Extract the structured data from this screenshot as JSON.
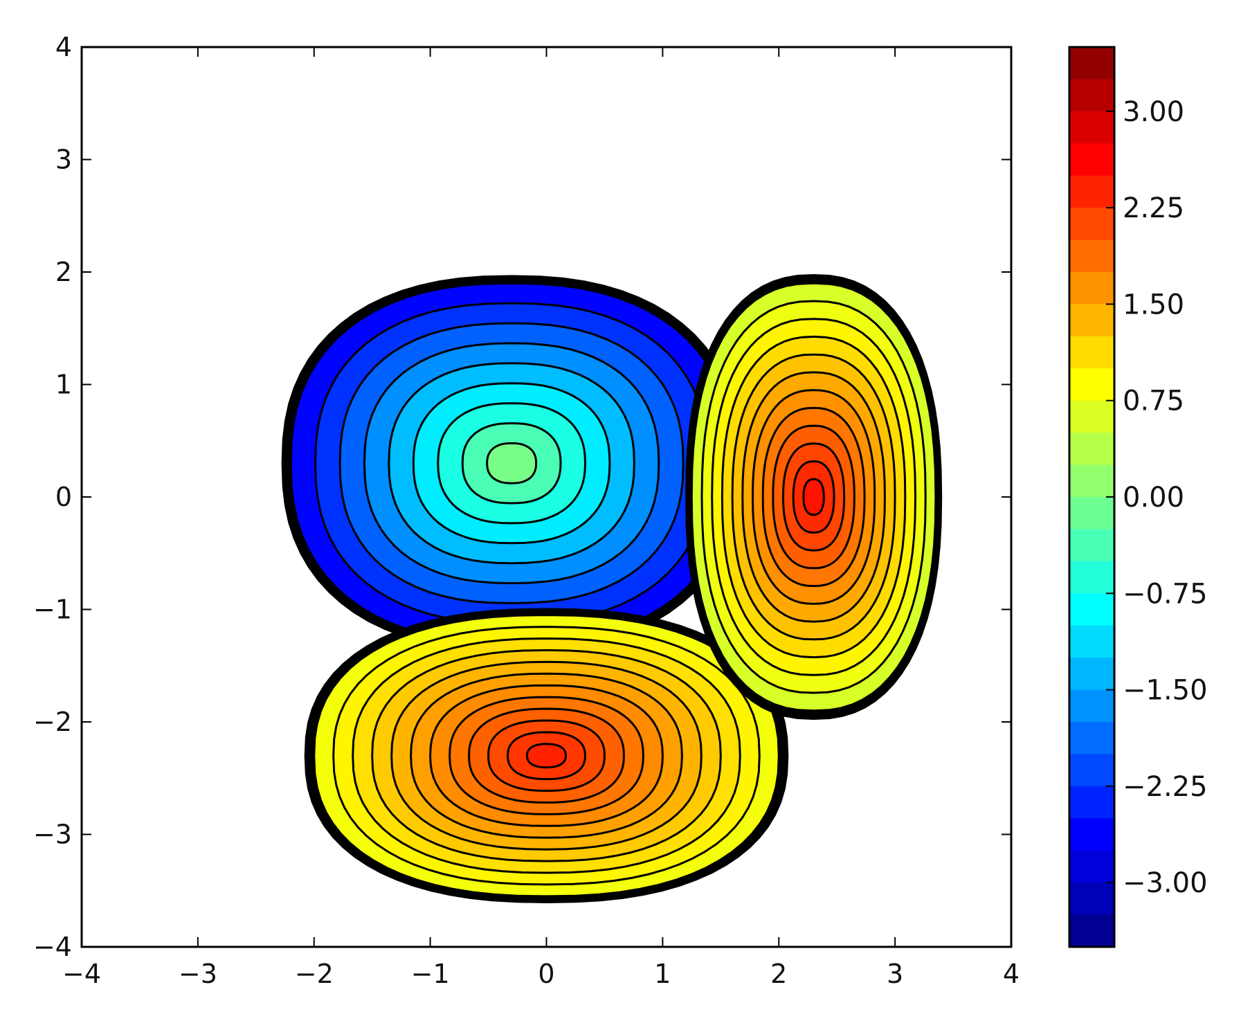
{
  "chart_data": {
    "type": "contour",
    "title": "",
    "xlabel": "",
    "ylabel": "",
    "xlim": [
      -4,
      4
    ],
    "ylim": [
      -4,
      4
    ],
    "x_ticks": [
      -4,
      -3,
      -2,
      -1,
      0,
      1,
      2,
      3,
      4
    ],
    "x_tick_labels": [
      "−4",
      "−3",
      "−2",
      "−1",
      "0",
      "1",
      "2",
      "3",
      "4"
    ],
    "y_ticks": [
      -4,
      -3,
      -2,
      -1,
      0,
      1,
      2,
      3,
      4
    ],
    "y_tick_labels": [
      "−4",
      "−3",
      "−2",
      "−1",
      "0",
      "1",
      "2",
      "3",
      "4"
    ],
    "colormap": "jet",
    "colorbar": {
      "range": [
        -3.5,
        3.5
      ],
      "ticks": [
        3.0,
        2.25,
        1.5,
        0.75,
        0.0,
        -0.75,
        -1.5,
        -2.25,
        -3.0
      ],
      "tick_labels": [
        "3.00",
        "2.25",
        "1.50",
        "0.75",
        "0.00",
        "−0.75",
        "−1.50",
        "−2.25",
        "−3.00"
      ],
      "placement": "right"
    },
    "regions": [
      {
        "name": "",
        "center": [
          -0.3,
          0.3
        ],
        "radius": [
          1.9,
          1.6
        ],
        "peak": -0.05,
        "edge": -2.6,
        "levels": 9
      },
      {
        "name": "",
        "center": [
          0.0,
          -2.3
        ],
        "radius": [
          2.0,
          1.25
        ],
        "peak": 2.4,
        "edge": 0.8,
        "levels": 12
      },
      {
        "name": "",
        "center": [
          2.3,
          0.0
        ],
        "radius": [
          1.05,
          1.9
        ],
        "peak": 2.5,
        "edge": 0.6,
        "levels": 12
      }
    ],
    "grid": false,
    "legend": "none"
  }
}
